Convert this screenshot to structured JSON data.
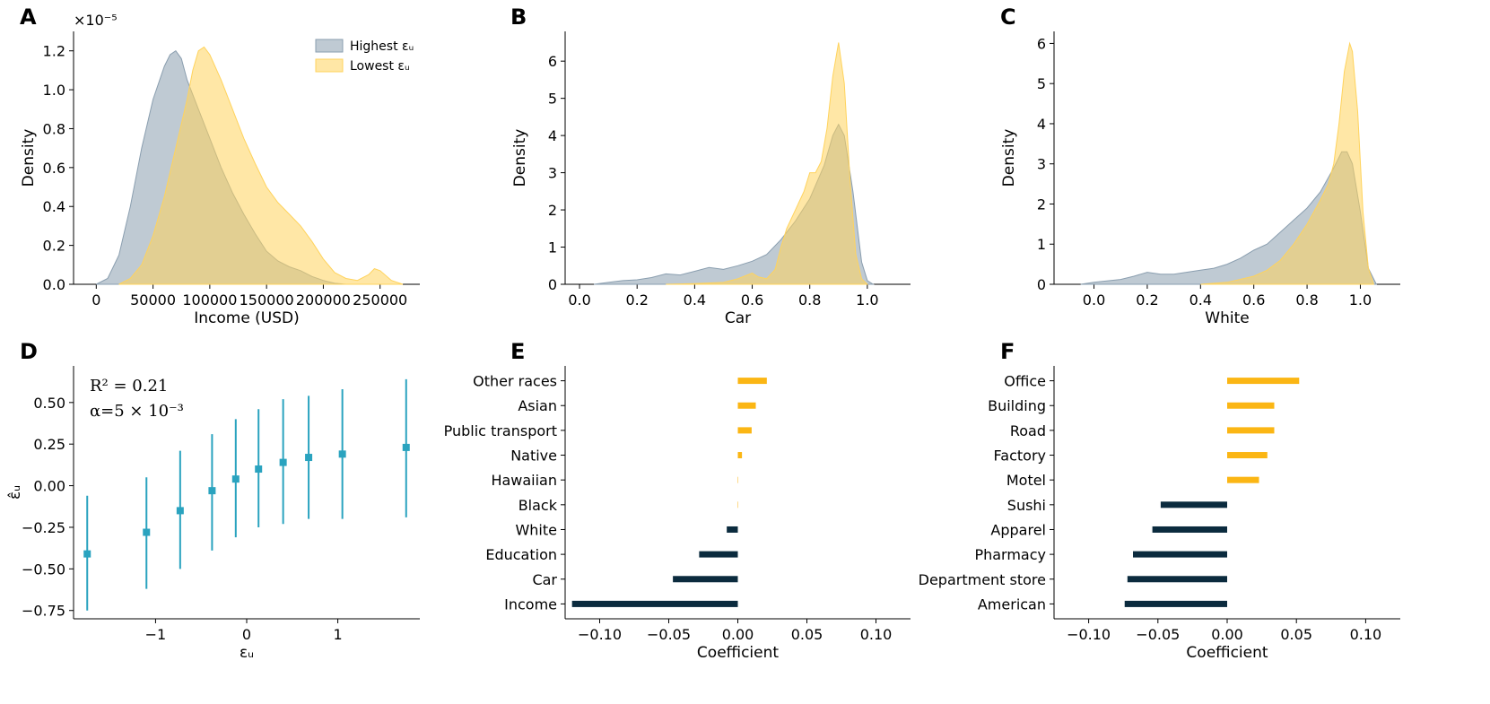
{
  "colors": {
    "highest": "#8a9eaf",
    "lowest": "#ffd35c",
    "bar_pos": "#fbb614",
    "bar_neg": "#0b2b3e",
    "errbar": "#2aa3bf"
  },
  "chart_data": [
    {
      "id": "A",
      "letter": "A",
      "type": "area",
      "xlabel": "Income (USD)",
      "ylabel": "Density",
      "scale_label": "×10⁻⁵",
      "xlim": [
        -20000,
        285000
      ],
      "ylim": [
        0,
        1.3
      ],
      "xticks": [
        0,
        50000,
        100000,
        150000,
        200000,
        250000
      ],
      "xtick_labels": [
        "0",
        "50000",
        "100000",
        "150000",
        "200000",
        "250000"
      ],
      "yticks": [
        0,
        0.2,
        0.4,
        0.6,
        0.8,
        1.0,
        1.2
      ],
      "ytick_labels": [
        "0.0",
        "0.2",
        "0.4",
        "0.6",
        "0.8",
        "1.0",
        "1.2"
      ],
      "legend": {
        "position": "top-right",
        "entries": [
          "Highest εᵤ",
          "Lowest εᵤ"
        ]
      },
      "series": [
        {
          "name": "Highest εᵤ",
          "x": [
            0,
            10000,
            20000,
            30000,
            40000,
            50000,
            60000,
            65000,
            70000,
            75000,
            80000,
            90000,
            100000,
            110000,
            120000,
            130000,
            140000,
            150000,
            160000,
            170000,
            180000,
            190000,
            200000,
            210000,
            220000
          ],
          "y": [
            0,
            0.03,
            0.15,
            0.4,
            0.7,
            0.95,
            1.12,
            1.18,
            1.2,
            1.16,
            1.05,
            0.9,
            0.75,
            0.6,
            0.47,
            0.36,
            0.26,
            0.17,
            0.12,
            0.09,
            0.07,
            0.04,
            0.02,
            0.005,
            0
          ]
        },
        {
          "name": "Lowest εᵤ",
          "x": [
            20000,
            30000,
            40000,
            50000,
            60000,
            70000,
            80000,
            85000,
            90000,
            95000,
            100000,
            110000,
            120000,
            130000,
            140000,
            150000,
            160000,
            170000,
            180000,
            190000,
            200000,
            210000,
            220000,
            230000,
            240000,
            245000,
            250000,
            260000,
            270000
          ],
          "y": [
            0,
            0.03,
            0.1,
            0.25,
            0.45,
            0.7,
            0.95,
            1.1,
            1.2,
            1.22,
            1.18,
            1.05,
            0.9,
            0.75,
            0.62,
            0.5,
            0.42,
            0.36,
            0.3,
            0.22,
            0.13,
            0.06,
            0.03,
            0.02,
            0.05,
            0.08,
            0.07,
            0.02,
            0
          ]
        }
      ]
    },
    {
      "id": "B",
      "letter": "B",
      "type": "area",
      "xlabel": "Car",
      "ylabel": "Density",
      "xlim": [
        -0.05,
        1.15
      ],
      "ylim": [
        0,
        6.8
      ],
      "xticks": [
        0,
        0.2,
        0.4,
        0.6,
        0.8,
        1.0
      ],
      "xtick_labels": [
        "0.0",
        "0.2",
        "0.4",
        "0.6",
        "0.8",
        "1.0"
      ],
      "yticks": [
        0,
        1,
        2,
        3,
        4,
        5,
        6
      ],
      "ytick_labels": [
        "0",
        "1",
        "2",
        "3",
        "4",
        "5",
        "6"
      ],
      "series": [
        {
          "name": "Highest εᵤ",
          "x": [
            0.05,
            0.1,
            0.15,
            0.2,
            0.25,
            0.3,
            0.35,
            0.4,
            0.45,
            0.5,
            0.55,
            0.6,
            0.65,
            0.7,
            0.75,
            0.8,
            0.85,
            0.88,
            0.9,
            0.92,
            0.95,
            0.98,
            1.0,
            1.02
          ],
          "y": [
            0,
            0.05,
            0.1,
            0.12,
            0.18,
            0.28,
            0.25,
            0.35,
            0.45,
            0.4,
            0.5,
            0.62,
            0.8,
            1.2,
            1.7,
            2.3,
            3.2,
            4.0,
            4.3,
            4.0,
            2.5,
            0.6,
            0.1,
            0
          ]
        },
        {
          "name": "Lowest εᵤ",
          "x": [
            0.3,
            0.4,
            0.5,
            0.55,
            0.6,
            0.62,
            0.65,
            0.68,
            0.7,
            0.72,
            0.75,
            0.78,
            0.8,
            0.82,
            0.84,
            0.86,
            0.88,
            0.9,
            0.92,
            0.94,
            0.96,
            0.98,
            1.0
          ],
          "y": [
            0,
            0.02,
            0.05,
            0.15,
            0.3,
            0.2,
            0.15,
            0.4,
            1.0,
            1.5,
            2.0,
            2.5,
            3.0,
            3.0,
            3.3,
            4.2,
            5.6,
            6.5,
            5.4,
            2.8,
            0.8,
            0.15,
            0
          ]
        }
      ]
    },
    {
      "id": "C",
      "letter": "C",
      "type": "area",
      "xlabel": "White",
      "ylabel": "Density",
      "xlim": [
        -0.15,
        1.15
      ],
      "ylim": [
        0,
        6.3
      ],
      "xticks": [
        0,
        0.2,
        0.4,
        0.6,
        0.8,
        1.0
      ],
      "xtick_labels": [
        "0.0",
        "0.2",
        "0.4",
        "0.6",
        "0.8",
        "1.0"
      ],
      "yticks": [
        0,
        1,
        2,
        3,
        4,
        5,
        6
      ],
      "ytick_labels": [
        "0",
        "1",
        "2",
        "3",
        "4",
        "5",
        "6"
      ],
      "series": [
        {
          "name": "Highest εᵤ",
          "x": [
            -0.05,
            0.0,
            0.1,
            0.15,
            0.2,
            0.25,
            0.3,
            0.4,
            0.45,
            0.5,
            0.55,
            0.6,
            0.65,
            0.7,
            0.75,
            0.8,
            0.85,
            0.9,
            0.93,
            0.95,
            0.97,
            1.0,
            1.03,
            1.06
          ],
          "y": [
            0,
            0.05,
            0.12,
            0.2,
            0.3,
            0.25,
            0.25,
            0.35,
            0.4,
            0.5,
            0.65,
            0.85,
            1.0,
            1.3,
            1.6,
            1.9,
            2.3,
            2.9,
            3.3,
            3.3,
            3.0,
            1.8,
            0.4,
            0
          ]
        },
        {
          "name": "Lowest εᵤ",
          "x": [
            0.4,
            0.5,
            0.6,
            0.65,
            0.7,
            0.75,
            0.8,
            0.85,
            0.88,
            0.9,
            0.92,
            0.94,
            0.96,
            0.97,
            0.99,
            1.01,
            1.03,
            1.05
          ],
          "y": [
            0,
            0.05,
            0.2,
            0.35,
            0.6,
            1.0,
            1.5,
            2.1,
            2.5,
            3.0,
            4.0,
            5.3,
            6.0,
            5.8,
            4.3,
            1.8,
            0.4,
            0
          ]
        }
      ]
    },
    {
      "id": "D",
      "letter": "D",
      "type": "scatter",
      "xlabel": "εᵤ",
      "ylabel": "ε̂ᵤ",
      "annotations": [
        "R² = 0.21",
        "α=5 × 10⁻³"
      ],
      "xlim": [
        -1.9,
        1.9
      ],
      "ylim": [
        -0.8,
        0.72
      ],
      "xticks": [
        -1,
        0,
        1
      ],
      "xtick_labels": [
        "−1",
        "0",
        "1"
      ],
      "yticks": [
        -0.75,
        -0.5,
        -0.25,
        0.0,
        0.25,
        0.5
      ],
      "ytick_labels": [
        "−0.75",
        "−0.50",
        "−0.25",
        "0.00",
        "0.25",
        "0.50"
      ],
      "x": [
        -1.75,
        -1.1,
        -0.73,
        -0.38,
        -0.12,
        0.13,
        0.4,
        0.68,
        1.05,
        1.75
      ],
      "y": [
        -0.41,
        -0.28,
        -0.15,
        -0.03,
        0.04,
        0.1,
        0.14,
        0.17,
        0.19,
        0.23
      ],
      "err_low": [
        -0.75,
        -0.62,
        -0.5,
        -0.39,
        -0.31,
        -0.25,
        -0.23,
        -0.2,
        -0.2,
        -0.19
      ],
      "err_high": [
        -0.06,
        0.05,
        0.21,
        0.31,
        0.4,
        0.46,
        0.52,
        0.54,
        0.58,
        0.64
      ]
    },
    {
      "id": "E",
      "letter": "E",
      "type": "bar",
      "xlabel": "Coefficient",
      "xlim": [
        -0.125,
        0.125
      ],
      "xticks": [
        -0.1,
        -0.05,
        0,
        0.05,
        0.1
      ],
      "xtick_labels": [
        "−0.10",
        "−0.05",
        "0.00",
        "0.05",
        "0.10"
      ],
      "categories": [
        "Other races",
        "Asian",
        "Public transport",
        "Native",
        "Hawaiian",
        "Black",
        "White",
        "Education",
        "Car",
        "Income"
      ],
      "values": [
        0.021,
        0.013,
        0.01,
        0.003,
        0.0,
        0.0,
        -0.008,
        -0.028,
        -0.047,
        -0.12
      ]
    },
    {
      "id": "F",
      "letter": "F",
      "type": "bar",
      "xlabel": "Coefficient",
      "xlim": [
        -0.125,
        0.125
      ],
      "xticks": [
        -0.1,
        -0.05,
        0,
        0.05,
        0.1
      ],
      "xtick_labels": [
        "−0.10",
        "−0.05",
        "0.00",
        "0.05",
        "0.10"
      ],
      "categories": [
        "Office",
        "Building",
        "Road",
        "Factory",
        "Motel",
        "Sushi",
        "Apparel",
        "Pharmacy",
        "Department store",
        "American"
      ],
      "values": [
        0.052,
        0.034,
        0.034,
        0.029,
        0.023,
        -0.048,
        -0.054,
        -0.068,
        -0.072,
        -0.074
      ]
    }
  ]
}
